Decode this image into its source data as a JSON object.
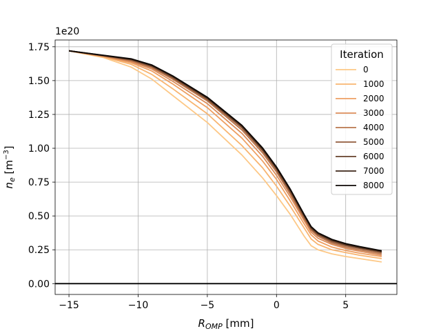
{
  "chart_data": {
    "type": "line",
    "title": "",
    "xlabel": "R",
    "xlabel_sub": "OMP",
    "xlabel_unit": " [mm]",
    "ylabel": "n",
    "ylabel_sub": "e",
    "ylabel_unit_pre": " [m",
    "ylabel_unit_sup": "−3",
    "ylabel_unit_post": "]",
    "y_offset_label": "1e20",
    "xlim": [
      -16,
      8.7
    ],
    "ylim": [
      -0.08,
      1.8
    ],
    "y_scale": 1e+20,
    "xticks": [
      -15,
      -10,
      -5,
      0,
      5
    ],
    "xtick_labels": [
      "−15",
      "−10",
      "−5",
      "0",
      "5"
    ],
    "yticks": [
      0,
      0.25,
      0.5,
      0.75,
      1.0,
      1.25,
      1.5,
      1.75
    ],
    "ytick_labels": [
      "0.00",
      "0.25",
      "0.50",
      "0.75",
      "1.00",
      "1.25",
      "1.50",
      "1.75"
    ],
    "grid": true,
    "hline": 0,
    "legend": {
      "title": "Iteration",
      "placement": "top-right"
    },
    "x": [
      -15,
      -12.5,
      -10.5,
      -9,
      -7.5,
      -5,
      -2.5,
      -1,
      0,
      1,
      2,
      2.5,
      3,
      4,
      5,
      6,
      7.6
    ],
    "series": [
      {
        "name": "0",
        "color": "#fdc886",
        "values": [
          1.72,
          1.67,
          1.6,
          1.51,
          1.39,
          1.19,
          0.95,
          0.78,
          0.65,
          0.51,
          0.35,
          0.28,
          0.25,
          0.22,
          0.2,
          0.185,
          0.16
        ]
      },
      {
        "name": "1000",
        "color": "#f8b46f",
        "values": [
          1.72,
          1.675,
          1.62,
          1.545,
          1.44,
          1.255,
          1.02,
          0.855,
          0.72,
          0.57,
          0.41,
          0.33,
          0.29,
          0.25,
          0.23,
          0.21,
          0.185
        ]
      },
      {
        "name": "2000",
        "color": "#ee9f62",
        "values": [
          1.72,
          1.678,
          1.632,
          1.57,
          1.475,
          1.3,
          1.075,
          0.905,
          0.77,
          0.61,
          0.44,
          0.36,
          0.315,
          0.27,
          0.245,
          0.225,
          0.2
        ]
      },
      {
        "name": "3000",
        "color": "#db8c59",
        "values": [
          1.72,
          1.68,
          1.64,
          1.585,
          1.495,
          1.33,
          1.11,
          0.94,
          0.8,
          0.64,
          0.465,
          0.38,
          0.335,
          0.29,
          0.26,
          0.24,
          0.21
        ]
      },
      {
        "name": "4000",
        "color": "#b8744b",
        "values": [
          1.72,
          1.682,
          1.646,
          1.595,
          1.51,
          1.35,
          1.135,
          0.965,
          0.825,
          0.66,
          0.48,
          0.395,
          0.35,
          0.3,
          0.27,
          0.25,
          0.22
        ]
      },
      {
        "name": "5000",
        "color": "#915a3a",
        "values": [
          1.72,
          1.684,
          1.652,
          1.603,
          1.52,
          1.36,
          1.15,
          0.98,
          0.84,
          0.675,
          0.49,
          0.405,
          0.36,
          0.31,
          0.28,
          0.26,
          0.23
        ]
      },
      {
        "name": "6000",
        "color": "#65402a",
        "values": [
          1.72,
          1.685,
          1.656,
          1.608,
          1.527,
          1.368,
          1.16,
          0.99,
          0.85,
          0.685,
          0.5,
          0.412,
          0.367,
          0.318,
          0.287,
          0.265,
          0.235
        ]
      },
      {
        "name": "7000",
        "color": "#3b2417",
        "values": [
          1.72,
          1.686,
          1.659,
          1.612,
          1.532,
          1.373,
          1.166,
          0.997,
          0.857,
          0.692,
          0.506,
          0.418,
          0.372,
          0.323,
          0.292,
          0.27,
          0.24
        ]
      },
      {
        "name": "8000",
        "color": "#0d0704",
        "values": [
          1.72,
          1.687,
          1.661,
          1.615,
          1.535,
          1.377,
          1.17,
          1.002,
          0.862,
          0.697,
          0.51,
          0.422,
          0.376,
          0.327,
          0.296,
          0.274,
          0.243
        ]
      }
    ]
  }
}
